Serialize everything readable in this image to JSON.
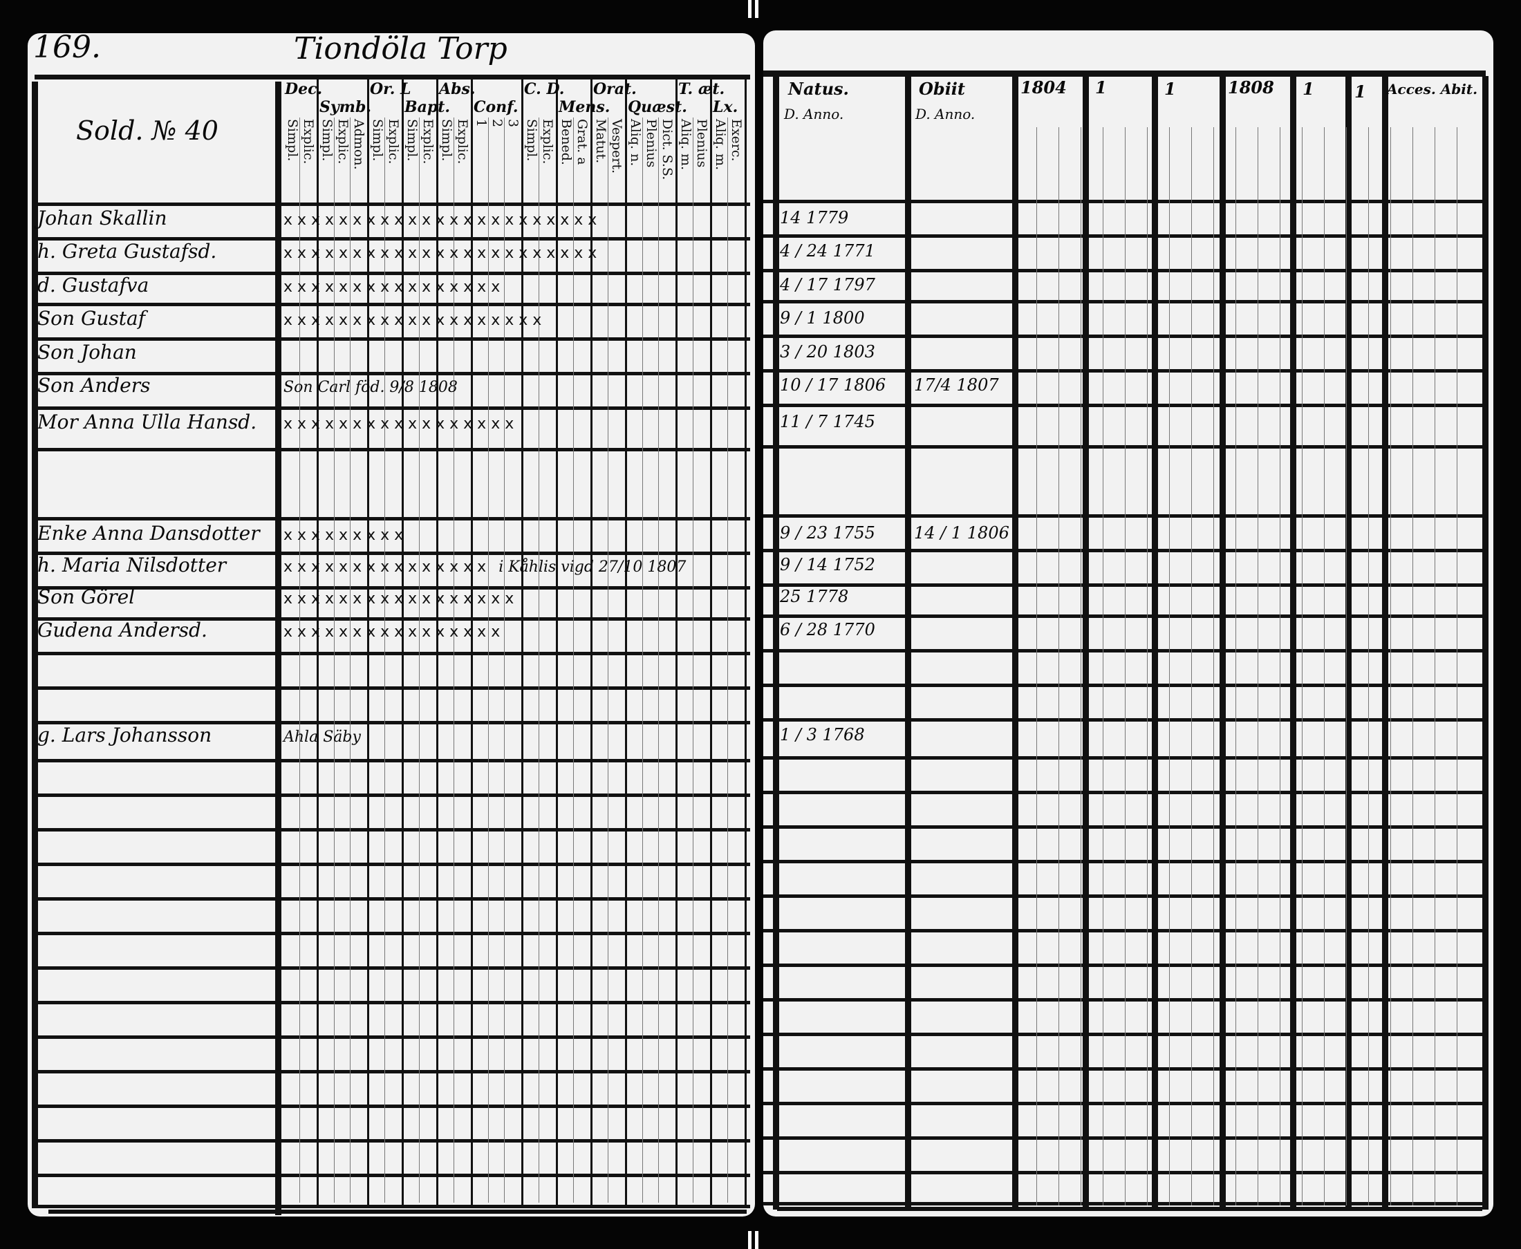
{
  "page_number": "169.",
  "village_title": "Tiondöla Torp",
  "household_label": "Sold. № 40",
  "left_headers": [
    {
      "label": "Dec.",
      "subs": [
        "Simpl.",
        "Explic."
      ]
    },
    {
      "label": "Symb.",
      "subs": [
        "Simpl.",
        "Explic.",
        "Admon."
      ]
    },
    {
      "label": "Or. L",
      "subs": [
        "Simpl.",
        "Explic."
      ]
    },
    {
      "label": "Bapt.",
      "subs": [
        "Simpl.",
        "Explic."
      ]
    },
    {
      "label": "Abs.",
      "subs": [
        "Simpl.",
        "Explic."
      ]
    },
    {
      "label": "Conf.",
      "subs": [
        "1",
        "2",
        "3"
      ]
    },
    {
      "label": "C. D.",
      "subs": [
        "Simpl.",
        "Explic."
      ]
    },
    {
      "label": "Mens.",
      "subs": [
        "Bened.",
        "Grat. a"
      ]
    },
    {
      "label": "Orat.",
      "subs": [
        "Matut.",
        "Vespert."
      ]
    },
    {
      "label": "Quæst.",
      "subs": [
        "Aliq. n.",
        "Plenius",
        "Dict. S.S."
      ]
    },
    {
      "label": "T. æt.",
      "subs": [
        "Aliq. m.",
        "Plenius"
      ]
    },
    {
      "label": "Lx.",
      "subs": [
        "Aliq. m.",
        "Exerc."
      ]
    }
  ],
  "right_headers": {
    "natus": "Natus.",
    "natus_sub": "D. Anno.",
    "obiit": "Obiit",
    "obiit_sub": "D. Anno.",
    "years": [
      "1804",
      "1",
      "1",
      "1808",
      "1",
      "1"
    ],
    "accessit_abiit": "Acces. Abit."
  },
  "rows": [
    {
      "name": "Johan Skallin",
      "marks": "x x  x x  x x  x x  x x  x x x  x x  x x  x x  x x  x x",
      "birth": "14  1779"
    },
    {
      "name": "h. Greta Gustafsd.",
      "marks": "x x  x x  x x  x x  x x  x x x  x x  x x  x x  x x  x x",
      "birth": "4 / 24  1771"
    },
    {
      "name": "d. Gustafva",
      "marks": "x x  x   x   x x  x x  x x x  x   x x  x x",
      "birth": "4 / 17  1797"
    },
    {
      "name": "Son Gustaf",
      "marks": "x x  x x  x x  x x  x x  x x x  x x  x x  x x",
      "birth": "9 / 1  1800"
    },
    {
      "name": "Son Johan",
      "marks": "",
      "birth": "3 / 20  1803"
    },
    {
      "name": "Son Anders",
      "marks": "",
      "note": "Son Carl föd. 9/8 1808",
      "birth": "10 / 17  1806",
      "death": "17/4  1807"
    },
    {
      "name": "Mor Anna Ulla Hansd.",
      "marks": "x x x  x x  x x  x x x  x x  x x  x x  x",
      "birth": "11 / 7  1745"
    },
    {
      "name": "Enke Anna Dansdotter",
      "marks": "x x  x x x  x x  x x",
      "birth": "9 / 23  1755",
      "death": "14 / 1  1806"
    },
    {
      "name": "h. Maria Nilsdotter",
      "marks": "x x  x x  x x x  x x  x x  x x  x x",
      "note": "i Kåhlis vigd 27/10 1807",
      "birth": "9 / 14  1752"
    },
    {
      "name": "Son Görel",
      "marks": "x x  x x  x x  x x x  x x  x x  x x  x x",
      "birth": "25  1778"
    },
    {
      "name": "Gudena Andersd.",
      "marks": "x x x  x x  x x x  x x  x x  x x  x x",
      "birth": "6 / 28  1770"
    },
    {
      "name": "g. Lars Johansson",
      "marks": "",
      "note": "Ahla Säby",
      "birth": "1 / 3  1768"
    }
  ]
}
